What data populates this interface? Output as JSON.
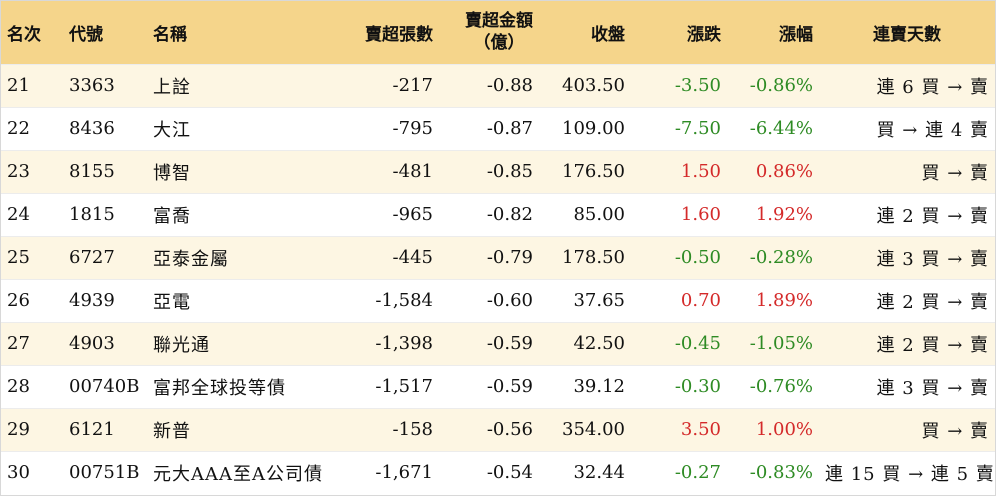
{
  "header": {
    "rank": "名次",
    "code": "代號",
    "name": "名稱",
    "net_sell_shares": "賣超張數",
    "net_sell_amount_line1": "賣超金額",
    "net_sell_amount_line2": "（億）",
    "close": "收盤",
    "change": "漲跌",
    "change_pct": "漲幅",
    "consecutive_days": "連賣天數"
  },
  "rows": [
    {
      "rank": "21",
      "code": "3363",
      "name": "上詮",
      "shares": "-217",
      "amount": "-0.88",
      "close": "403.50",
      "change": "-3.50",
      "pct": "-0.86%",
      "days": "連 6 買 → 賣",
      "direction": "down"
    },
    {
      "rank": "22",
      "code": "8436",
      "name": "大江",
      "shares": "-795",
      "amount": "-0.87",
      "close": "109.00",
      "change": "-7.50",
      "pct": "-6.44%",
      "days": "買 → 連 4 賣",
      "direction": "down"
    },
    {
      "rank": "23",
      "code": "8155",
      "name": "博智",
      "shares": "-481",
      "amount": "-0.85",
      "close": "176.50",
      "change": "1.50",
      "pct": "0.86%",
      "days": "買 → 賣",
      "direction": "up"
    },
    {
      "rank": "24",
      "code": "1815",
      "name": "富喬",
      "shares": "-965",
      "amount": "-0.82",
      "close": "85.00",
      "change": "1.60",
      "pct": "1.92%",
      "days": "連 2 買 → 賣",
      "direction": "up"
    },
    {
      "rank": "25",
      "code": "6727",
      "name": "亞泰金屬",
      "shares": "-445",
      "amount": "-0.79",
      "close": "178.50",
      "change": "-0.50",
      "pct": "-0.28%",
      "days": "連 3 買 → 賣",
      "direction": "down"
    },
    {
      "rank": "26",
      "code": "4939",
      "name": "亞電",
      "shares": "-1,584",
      "amount": "-0.60",
      "close": "37.65",
      "change": "0.70",
      "pct": "1.89%",
      "days": "連 2 買 → 賣",
      "direction": "up"
    },
    {
      "rank": "27",
      "code": "4903",
      "name": "聯光通",
      "shares": "-1,398",
      "amount": "-0.59",
      "close": "42.50",
      "change": "-0.45",
      "pct": "-1.05%",
      "days": "連 2 買 → 賣",
      "direction": "down"
    },
    {
      "rank": "28",
      "code": "00740B",
      "name": "富邦全球投等債",
      "shares": "-1,517",
      "amount": "-0.59",
      "close": "39.12",
      "change": "-0.30",
      "pct": "-0.76%",
      "days": "連 3 買 → 賣",
      "direction": "down"
    },
    {
      "rank": "29",
      "code": "6121",
      "name": "新普",
      "shares": "-158",
      "amount": "-0.56",
      "close": "354.00",
      "change": "3.50",
      "pct": "1.00%",
      "days": "買 → 賣",
      "direction": "up"
    },
    {
      "rank": "30",
      "code": "00751B",
      "name": "元大AAA至A公司債",
      "shares": "-1,671",
      "amount": "-0.54",
      "close": "32.44",
      "change": "-0.27",
      "pct": "-0.83%",
      "days": "連 15 買 → 連 5 賣",
      "direction": "down"
    }
  ],
  "colors": {
    "header_bg": "#f5d58b",
    "odd_row_bg": "#fdf6e3",
    "even_row_bg": "#ffffff",
    "up": "#d42a2a",
    "down": "#2e8b24"
  }
}
